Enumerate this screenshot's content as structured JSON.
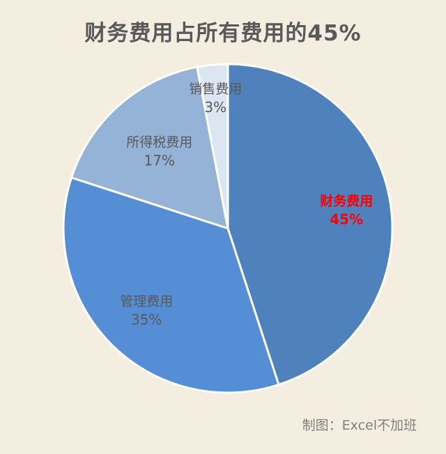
{
  "chart_data": {
    "type": "pie",
    "title": "财务费用占所有费用的45%",
    "categories": [
      "财务费用",
      "管理费用",
      "所得税费用",
      "销售费用"
    ],
    "values": [
      45,
      35,
      17,
      3
    ],
    "value_labels": [
      "45%",
      "35%",
      "17%",
      "3%"
    ],
    "colors": [
      "#4F81BD",
      "#558ED5",
      "#95B3D7",
      "#DCE6F2"
    ],
    "highlight_color": "#FF0000",
    "label_color": "#595959",
    "legend": "none"
  },
  "footer": {
    "credit": "制图：Excel不加班"
  }
}
